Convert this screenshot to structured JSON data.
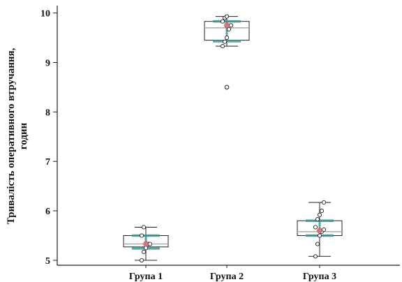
{
  "chart_data": {
    "type": "box",
    "ylabel_line1": "Тривалість оперативного втручання,",
    "ylabel_line2": "годин",
    "xlabel": "",
    "ylim": [
      4.9,
      10.15
    ],
    "yticks": [
      5,
      6,
      7,
      8,
      9,
      10
    ],
    "categories": [
      "Група 1",
      "Група 2",
      "Група 3"
    ],
    "groups": [
      {
        "name": "Група 1",
        "whisker_low": 5.0,
        "q1": 5.27,
        "median": 5.33,
        "q3": 5.5,
        "whisker_high": 5.67,
        "mean": 5.33,
        "ci": [
          5.24,
          5.5
        ],
        "outliers": [],
        "points": [
          5.0,
          5.17,
          5.25,
          5.33,
          5.33,
          5.5,
          5.67
        ]
      },
      {
        "name": "Група 2",
        "whisker_low": 9.33,
        "q1": 9.45,
        "median": 9.7,
        "q3": 9.83,
        "whisker_high": 9.93,
        "mean": 9.75,
        "ci": [
          9.43,
          9.83
        ],
        "outliers": [
          8.5
        ],
        "points": [
          9.33,
          9.42,
          9.5,
          9.67,
          9.75,
          9.83,
          9.9,
          9.93
        ]
      },
      {
        "name": "Група 3",
        "whisker_low": 5.08,
        "q1": 5.5,
        "median": 5.58,
        "q3": 5.8,
        "whisker_high": 6.17,
        "mean": 5.6,
        "ci": [
          5.5,
          5.8
        ],
        "outliers": [],
        "points": [
          5.08,
          5.33,
          5.5,
          5.58,
          5.62,
          5.67,
          5.83,
          5.92,
          6.0,
          6.17
        ]
      }
    ],
    "colors": {
      "box": "#222222",
      "median": "#aaaaaa",
      "ci": "#3a9a93",
      "mean": "#d9757a",
      "point": "#ffffff",
      "point_stroke": "#222222",
      "axis": "#222222"
    },
    "grid": false
  }
}
